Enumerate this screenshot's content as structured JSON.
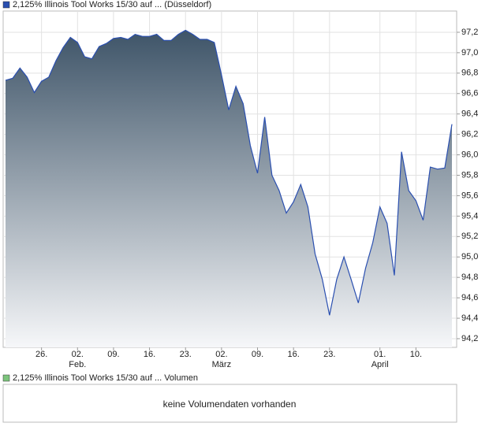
{
  "chart_data": {
    "type": "area",
    "title": "2,125% Illinois Tool Works 15/30 auf ... (Düsseldorf)",
    "color": "#2a4fb0",
    "categories": [
      null,
      null,
      null,
      null,
      null,
      "26.",
      null,
      null,
      null,
      null,
      "02.",
      null,
      null,
      null,
      null,
      "09.",
      null,
      null,
      null,
      null,
      "16.",
      null,
      null,
      null,
      null,
      "23.",
      null,
      null,
      null,
      null,
      "02.",
      null,
      null,
      null,
      null,
      "09.",
      null,
      null,
      null,
      null,
      "16.",
      null,
      null,
      null,
      null,
      "23.",
      null,
      null,
      null,
      null,
      null,
      null,
      "01.",
      null,
      null,
      null,
      null,
      "10.",
      null,
      null,
      null,
      null,
      null
    ],
    "months": [
      null,
      null,
      null,
      null,
      null,
      null,
      null,
      null,
      null,
      null,
      "Feb.",
      null,
      null,
      null,
      null,
      null,
      null,
      null,
      null,
      null,
      null,
      null,
      null,
      null,
      null,
      null,
      null,
      null,
      null,
      null,
      "März",
      null,
      null,
      null,
      null,
      null,
      null,
      null,
      null,
      null,
      null,
      null,
      null,
      null,
      null,
      null,
      null,
      null,
      null,
      null,
      null,
      null,
      "April",
      null,
      null,
      null,
      null,
      null,
      null,
      null,
      null,
      null,
      null
    ],
    "values": [
      96.73,
      96.75,
      96.85,
      96.76,
      96.61,
      96.72,
      96.76,
      96.92,
      97.05,
      97.15,
      97.1,
      96.96,
      96.94,
      97.06,
      97.09,
      97.14,
      97.15,
      97.13,
      97.18,
      97.16,
      97.16,
      97.18,
      97.12,
      97.12,
      97.18,
      97.22,
      97.18,
      97.13,
      97.13,
      97.1,
      96.78,
      96.44,
      96.67,
      96.5,
      96.09,
      95.82,
      96.37,
      95.8,
      95.65,
      95.43,
      95.54,
      95.71,
      95.49,
      95.03,
      94.78,
      94.43,
      94.78,
      95.0,
      94.78,
      94.55,
      94.89,
      95.14,
      95.49,
      95.33,
      94.82,
      96.03,
      95.65,
      95.55,
      95.36,
      95.88,
      95.86,
      95.87,
      96.3
    ],
    "ylim": [
      94.115,
      97.408
    ],
    "yticks": [
      {
        "value": 94.2,
        "label": "94,2"
      },
      {
        "value": 94.4,
        "label": "94,4"
      },
      {
        "value": 94.6,
        "label": "94,6"
      },
      {
        "value": 94.8,
        "label": "94,8"
      },
      {
        "value": 95.0,
        "label": "95,0"
      },
      {
        "value": 95.2,
        "label": "95,2"
      },
      {
        "value": 95.4,
        "label": "95,4"
      },
      {
        "value": 95.6,
        "label": "95,6"
      },
      {
        "value": 95.8,
        "label": "95,8"
      },
      {
        "value": 96.0,
        "label": "96,0"
      },
      {
        "value": 96.2,
        "label": "96,2"
      },
      {
        "value": 96.4,
        "label": "96,4"
      },
      {
        "value": 96.6,
        "label": "96,6"
      },
      {
        "value": 96.8,
        "label": "96,8"
      },
      {
        "value": 97.0,
        "label": "97,0"
      },
      {
        "value": 97.2,
        "label": "97,2"
      }
    ],
    "grid": true
  },
  "volume_panel": {
    "title": "2,125% Illinois Tool Works 15/30 auf ... Volumen",
    "color": "#7cc47c",
    "message": "keine Volumendaten vorhanden"
  }
}
